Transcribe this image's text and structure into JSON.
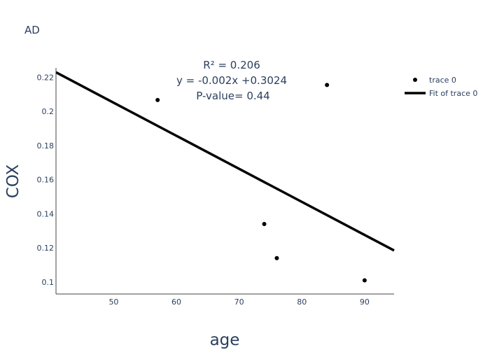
{
  "chart_data": {
    "type": "scatter",
    "title": "AD",
    "xlabel": "age",
    "ylabel": "COX",
    "xlim": [
      40.8,
      94.7
    ],
    "ylim": [
      0.093,
      0.2255
    ],
    "xticks": [
      50,
      60,
      70,
      80,
      90
    ],
    "yticks": [
      0.1,
      0.12,
      0.14,
      0.16,
      0.18,
      0.2,
      0.22
    ],
    "ytick_labels": [
      "0.1",
      "0.12",
      "0.14",
      "0.16",
      "0.18",
      "0.2",
      "0.22"
    ],
    "grid": false,
    "legend_position": "top-right",
    "series": [
      {
        "name": "trace 0",
        "mode": "markers",
        "color": "#000000",
        "x": [
          57,
          74,
          76,
          84,
          90
        ],
        "y": [
          0.2067,
          0.134,
          0.114,
          0.2155,
          0.101
        ]
      },
      {
        "name": "Fit of trace 0",
        "mode": "line",
        "color": "#000000",
        "x": [
          40.8,
          94.7
        ],
        "y": [
          0.2229,
          0.1185
        ]
      }
    ],
    "annotations": [
      "R² = 0.206",
      "y = -0.002x +0.3024",
      "P-value= 0.44"
    ]
  }
}
